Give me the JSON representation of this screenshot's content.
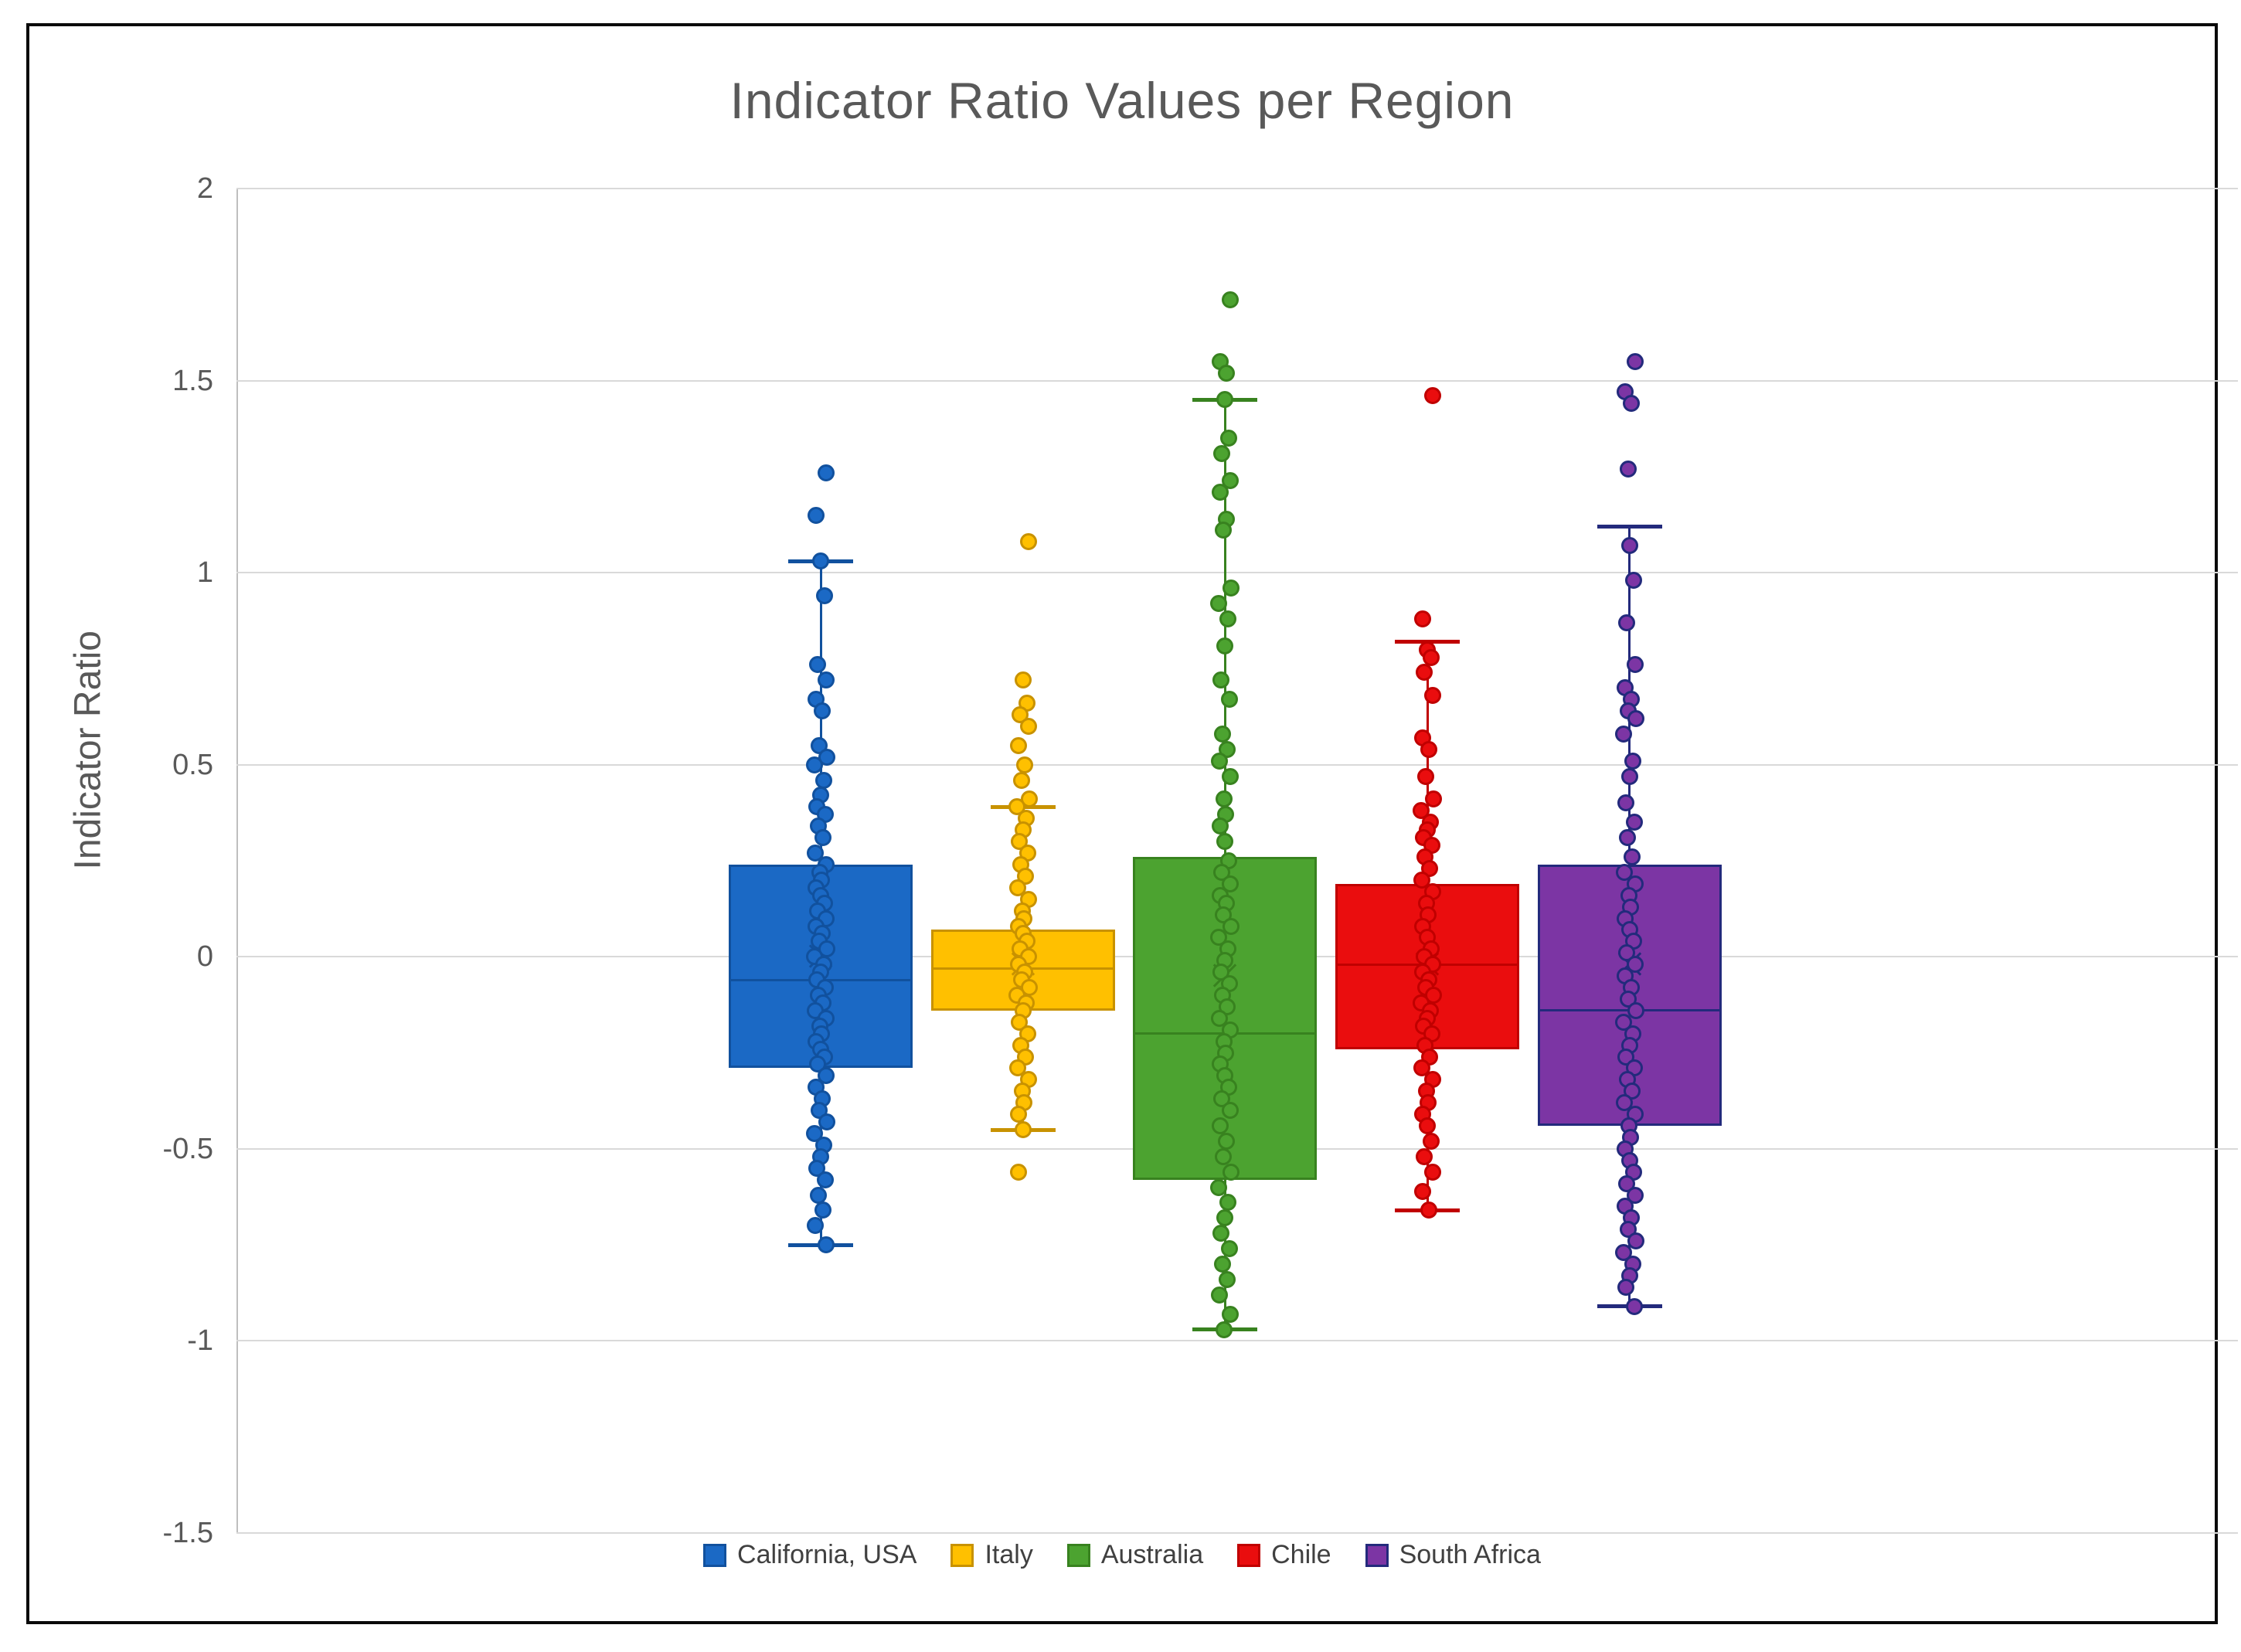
{
  "chart_data": {
    "type": "box",
    "title": "Indicator Ratio Values per Region",
    "ylabel": "Indicator Ratio",
    "ylim": [
      -1.5,
      2
    ],
    "yticks": [
      2,
      1.5,
      1,
      0.5,
      0,
      -0.5,
      -1,
      -1.5
    ],
    "ytick_labels": [
      "2",
      "1.5",
      "1",
      "0.5",
      "0",
      "-0.5",
      "-1",
      "-1.5"
    ],
    "grid": true,
    "legend_position": "bottom",
    "colors": {
      "gridline": "#d9d9d9",
      "axis_line": "#bfbfbf",
      "title_text": "#595959",
      "tick_text": "#595959",
      "legend_text": "#404040",
      "frame_border": "#0a0a0a"
    },
    "series": [
      {
        "name": "California, USA",
        "fill": "#1b69c5",
        "stroke": "#11519e",
        "q1": -0.29,
        "median": -0.06,
        "q3": 0.24,
        "mean": 0.0,
        "whisker_low": -0.75,
        "whisker_high": 1.03,
        "outliers": [
          1.26,
          1.15
        ],
        "points": [
          1.03,
          0.94,
          0.76,
          0.72,
          0.67,
          0.64,
          0.55,
          0.52,
          0.5,
          0.46,
          0.42,
          0.39,
          0.37,
          0.34,
          0.31,
          0.27,
          0.24,
          0.22,
          0.2,
          0.18,
          0.16,
          0.14,
          0.12,
          0.1,
          0.08,
          0.06,
          0.04,
          0.02,
          0.0,
          -0.02,
          -0.04,
          -0.06,
          -0.08,
          -0.1,
          -0.12,
          -0.14,
          -0.16,
          -0.18,
          -0.2,
          -0.22,
          -0.24,
          -0.26,
          -0.28,
          -0.31,
          -0.34,
          -0.37,
          -0.4,
          -0.43,
          -0.46,
          -0.49,
          -0.52,
          -0.55,
          -0.58,
          -0.62,
          -0.66,
          -0.7,
          -0.75
        ]
      },
      {
        "name": "Italy",
        "fill": "#ffc000",
        "stroke": "#c89200",
        "q1": -0.14,
        "median": -0.03,
        "q3": 0.07,
        "mean": -0.02,
        "whisker_low": -0.45,
        "whisker_high": 0.39,
        "outliers": [
          1.08,
          -0.56
        ],
        "points": [
          0.72,
          0.66,
          0.63,
          0.6,
          0.55,
          0.5,
          0.46,
          0.41,
          0.39,
          0.36,
          0.33,
          0.3,
          0.27,
          0.24,
          0.21,
          0.18,
          0.15,
          0.12,
          0.1,
          0.08,
          0.06,
          0.04,
          0.02,
          0.0,
          -0.02,
          -0.04,
          -0.06,
          -0.08,
          -0.1,
          -0.12,
          -0.14,
          -0.17,
          -0.2,
          -0.23,
          -0.26,
          -0.29,
          -0.32,
          -0.35,
          -0.38,
          -0.41,
          -0.45
        ]
      },
      {
        "name": "Australia",
        "fill": "#4ca330",
        "stroke": "#38821f",
        "q1": -0.58,
        "median": -0.2,
        "q3": 0.26,
        "mean": -0.05,
        "whisker_low": -0.97,
        "whisker_high": 1.45,
        "outliers": [
          1.71,
          1.55,
          1.52
        ],
        "points": [
          1.45,
          1.35,
          1.31,
          1.24,
          1.21,
          1.14,
          1.11,
          0.96,
          0.92,
          0.88,
          0.81,
          0.72,
          0.67,
          0.58,
          0.54,
          0.51,
          0.47,
          0.41,
          0.37,
          0.34,
          0.3,
          0.25,
          0.22,
          0.19,
          0.16,
          0.14,
          0.11,
          0.08,
          0.05,
          0.02,
          -0.01,
          -0.04,
          -0.07,
          -0.1,
          -0.13,
          -0.16,
          -0.19,
          -0.22,
          -0.25,
          -0.28,
          -0.31,
          -0.34,
          -0.37,
          -0.4,
          -0.44,
          -0.48,
          -0.52,
          -0.56,
          -0.6,
          -0.64,
          -0.68,
          -0.72,
          -0.76,
          -0.8,
          -0.84,
          -0.88,
          -0.93,
          -0.97
        ]
      },
      {
        "name": "Chile",
        "fill": "#ea0d0e",
        "stroke": "#c00000",
        "q1": -0.24,
        "median": -0.02,
        "q3": 0.19,
        "mean": -0.02,
        "whisker_low": -0.66,
        "whisker_high": 0.82,
        "outliers": [
          1.46,
          0.88
        ],
        "points": [
          0.8,
          0.78,
          0.74,
          0.68,
          0.57,
          0.54,
          0.47,
          0.41,
          0.38,
          0.35,
          0.33,
          0.31,
          0.29,
          0.26,
          0.23,
          0.2,
          0.17,
          0.14,
          0.11,
          0.08,
          0.05,
          0.02,
          0.0,
          -0.02,
          -0.04,
          -0.06,
          -0.08,
          -0.1,
          -0.12,
          -0.14,
          -0.16,
          -0.18,
          -0.2,
          -0.23,
          -0.26,
          -0.29,
          -0.32,
          -0.35,
          -0.38,
          -0.41,
          -0.44,
          -0.48,
          -0.52,
          -0.56,
          -0.61,
          -0.66
        ]
      },
      {
        "name": "South Africa",
        "fill": "#7c35a4",
        "stroke": "#232a7c",
        "q1": -0.44,
        "median": -0.14,
        "q3": 0.24,
        "mean": -0.02,
        "whisker_low": -0.91,
        "whisker_high": 1.12,
        "outliers": [
          1.55,
          1.47,
          1.44,
          1.27
        ],
        "points": [
          1.07,
          0.98,
          0.87,
          0.76,
          0.7,
          0.67,
          0.64,
          0.62,
          0.58,
          0.51,
          0.47,
          0.4,
          0.35,
          0.31,
          0.26,
          0.22,
          0.19,
          0.16,
          0.13,
          0.1,
          0.07,
          0.04,
          0.01,
          -0.02,
          -0.05,
          -0.08,
          -0.11,
          -0.14,
          -0.17,
          -0.2,
          -0.23,
          -0.26,
          -0.29,
          -0.32,
          -0.35,
          -0.38,
          -0.41,
          -0.44,
          -0.47,
          -0.5,
          -0.53,
          -0.56,
          -0.59,
          -0.62,
          -0.65,
          -0.68,
          -0.71,
          -0.74,
          -0.77,
          -0.8,
          -0.83,
          -0.86,
          -0.91
        ]
      }
    ]
  }
}
